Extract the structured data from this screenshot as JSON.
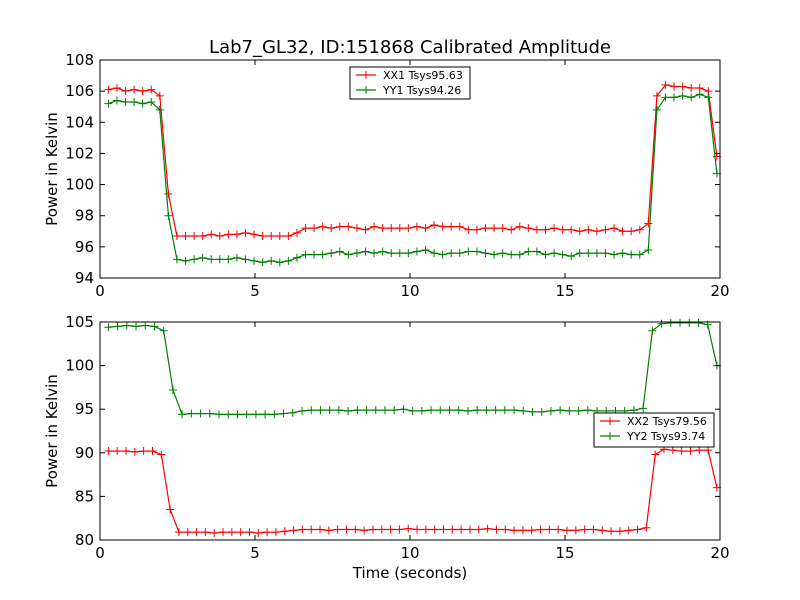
{
  "title": "Lab7_GL32, ID:151868 Calibrated Amplitude",
  "chart_data": [
    {
      "type": "line",
      "ylabel": "Power in Kelvin",
      "xlabel": "",
      "xlim": [
        0,
        20
      ],
      "ylim": [
        94,
        108
      ],
      "xticks": [
        "0",
        "5",
        "10",
        "15",
        "20"
      ],
      "yticks": [
        "94",
        "96",
        "98",
        "100",
        "102",
        "104",
        "106",
        "108"
      ],
      "legend_position": "top-center",
      "series": [
        {
          "name": "XX1 Tsys95.63",
          "color": "#ff0000",
          "values": [
            106.1,
            106.2,
            106.0,
            106.1,
            106.0,
            106.1,
            105.7,
            99.4,
            96.7,
            96.7,
            96.7,
            96.7,
            96.8,
            96.7,
            96.8,
            96.8,
            96.9,
            96.8,
            96.7,
            96.7,
            96.7,
            96.7,
            96.9,
            97.2,
            97.2,
            97.3,
            97.2,
            97.3,
            97.3,
            97.2,
            97.1,
            97.3,
            97.2,
            97.2,
            97.2,
            97.2,
            97.3,
            97.2,
            97.4,
            97.3,
            97.3,
            97.3,
            97.1,
            97.1,
            97.2,
            97.2,
            97.2,
            97.1,
            97.3,
            97.2,
            97.1,
            97.1,
            97.2,
            97.1,
            97.1,
            97.0,
            97.1,
            97.0,
            97.1,
            97.2,
            97.0,
            97.0,
            97.1,
            97.5,
            105.7,
            106.4,
            106.3,
            106.3,
            106.2,
            106.2,
            106.0,
            101.8
          ]
        },
        {
          "name": "YY1 Tsys94.26",
          "color": "#008000",
          "values": [
            105.2,
            105.4,
            105.3,
            105.3,
            105.2,
            105.3,
            104.8,
            98.0,
            95.2,
            95.1,
            95.2,
            95.3,
            95.2,
            95.2,
            95.2,
            95.3,
            95.2,
            95.1,
            95.0,
            95.1,
            95.0,
            95.1,
            95.3,
            95.5,
            95.5,
            95.5,
            95.6,
            95.7,
            95.5,
            95.6,
            95.7,
            95.6,
            95.7,
            95.6,
            95.6,
            95.6,
            95.7,
            95.8,
            95.6,
            95.5,
            95.6,
            95.6,
            95.7,
            95.7,
            95.6,
            95.5,
            95.6,
            95.5,
            95.5,
            95.7,
            95.7,
            95.5,
            95.6,
            95.5,
            95.4,
            95.6,
            95.6,
            95.6,
            95.6,
            95.5,
            95.6,
            95.5,
            95.5,
            95.8,
            104.8,
            105.6,
            105.6,
            105.7,
            105.6,
            105.8,
            105.6,
            100.7
          ]
        }
      ]
    },
    {
      "type": "line",
      "ylabel": "Power in Kelvin",
      "xlabel": "Time (seconds)",
      "xlim": [
        0,
        20
      ],
      "ylim": [
        80,
        105
      ],
      "xticks": [
        "0",
        "5",
        "10",
        "15",
        "20"
      ],
      "yticks": [
        "80",
        "85",
        "90",
        "95",
        "100",
        "105"
      ],
      "legend_position": "right",
      "series": [
        {
          "name": "XX2 Tsys79.56",
          "color": "#ff0000",
          "values": [
            90.2,
            90.2,
            90.2,
            90.1,
            90.2,
            90.2,
            89.8,
            83.5,
            80.9,
            80.9,
            80.9,
            80.9,
            80.8,
            80.9,
            80.9,
            80.9,
            80.9,
            80.8,
            80.9,
            80.9,
            81.0,
            81.1,
            81.2,
            81.2,
            81.2,
            81.1,
            81.2,
            81.2,
            81.2,
            81.1,
            81.2,
            81.2,
            81.2,
            81.2,
            81.3,
            81.2,
            81.2,
            81.2,
            81.2,
            81.2,
            81.2,
            81.2,
            81.2,
            81.3,
            81.2,
            81.2,
            81.1,
            81.1,
            81.1,
            81.2,
            81.2,
            81.2,
            81.1,
            81.1,
            81.2,
            81.2,
            81.1,
            81.0,
            81.0,
            81.1,
            81.2,
            81.4,
            89.8,
            90.4,
            90.3,
            90.2,
            90.2,
            90.3,
            90.3,
            86.0
          ]
        },
        {
          "name": "YY2 Tsys93.74",
          "color": "#008000",
          "values": [
            104.4,
            104.5,
            104.6,
            104.5,
            104.6,
            104.5,
            104.0,
            97.2,
            94.4,
            94.5,
            94.5,
            94.5,
            94.4,
            94.4,
            94.4,
            94.4,
            94.4,
            94.4,
            94.4,
            94.5,
            94.6,
            94.8,
            94.9,
            94.9,
            94.9,
            94.9,
            94.8,
            94.9,
            94.9,
            94.9,
            94.9,
            94.9,
            95.0,
            94.8,
            94.8,
            94.9,
            94.9,
            94.9,
            94.9,
            94.8,
            94.9,
            94.9,
            94.9,
            94.9,
            94.9,
            94.8,
            94.7,
            94.7,
            94.8,
            94.9,
            94.8,
            94.8,
            94.9,
            94.8,
            94.8,
            94.8,
            94.8,
            94.9,
            95.1,
            104.0,
            104.8,
            104.9,
            104.9,
            104.9,
            104.9,
            104.7,
            100.0
          ]
        }
      ]
    }
  ]
}
